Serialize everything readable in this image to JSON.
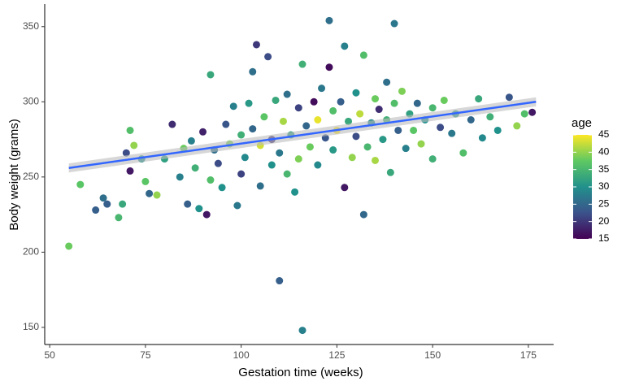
{
  "chart_data": {
    "type": "scatter",
    "x_label": "Gestation time (weeks)",
    "y_label": "Body weight (grams)",
    "xlim": [
      48.7,
      181.6
    ],
    "ylim": [
      138.6,
      365
    ],
    "xticks": [
      50,
      75,
      100,
      125,
      150,
      175
    ],
    "yticks": [
      150,
      200,
      250,
      300,
      350
    ],
    "grid": false,
    "x": [
      55,
      58,
      62,
      64,
      65,
      68,
      69,
      70,
      71,
      71,
      72,
      74,
      75,
      76,
      78,
      80,
      82,
      84,
      85,
      86,
      87,
      88,
      89,
      90,
      91,
      92,
      92,
      93,
      94,
      95,
      96,
      97,
      98,
      99,
      100,
      100,
      101,
      102,
      103,
      103,
      104,
      105,
      105,
      106,
      107,
      108,
      108,
      109,
      110,
      110,
      111,
      112,
      112,
      113,
      114,
      115,
      115,
      116,
      116,
      117,
      118,
      119,
      120,
      120,
      121,
      122,
      123,
      123,
      124,
      124,
      125,
      126,
      127,
      127,
      128,
      129,
      130,
      130,
      131,
      132,
      132,
      133,
      134,
      135,
      135,
      136,
      137,
      138,
      138,
      139,
      140,
      140,
      141,
      142,
      143,
      144,
      145,
      146,
      147,
      148,
      150,
      150,
      152,
      153,
      155,
      156,
      158,
      160,
      162,
      163,
      165,
      167,
      170,
      172,
      174,
      176
    ],
    "y": [
      204,
      245,
      228,
      236,
      232,
      223,
      232,
      266,
      281,
      254,
      271,
      262,
      247,
      239,
      238,
      262,
      285,
      250,
      269,
      232,
      274,
      256,
      229,
      280,
      225,
      248,
      318,
      268,
      259,
      243,
      285,
      272,
      297,
      231,
      278,
      252,
      263,
      299,
      282,
      320,
      338,
      271,
      244,
      290,
      330,
      258,
      275,
      301,
      181,
      266,
      287,
      252,
      305,
      278,
      240,
      296,
      262,
      148,
      325,
      284,
      270,
      300,
      258,
      288,
      309,
      276,
      354,
      323,
      268,
      294,
      281,
      300,
      337,
      243,
      287,
      263,
      306,
      277,
      292,
      331,
      225,
      270,
      286,
      302,
      261,
      295,
      275,
      313,
      288,
      253,
      352,
      299,
      281,
      307,
      269,
      292,
      281,
      299,
      272,
      288,
      296,
      262,
      283,
      301,
      279,
      292,
      266,
      288,
      302,
      276,
      290,
      281,
      303,
      284,
      292,
      293
    ],
    "age": [
      38,
      37,
      24,
      26,
      24,
      35,
      33,
      22,
      36,
      17,
      40,
      30,
      37,
      25,
      40,
      32,
      19,
      28,
      38,
      24,
      28,
      34,
      30,
      18,
      17,
      36,
      33,
      26,
      22,
      30,
      23,
      39,
      28,
      27,
      34,
      21,
      29,
      31,
      25,
      26,
      20,
      43,
      26,
      37,
      22,
      30,
      19,
      33,
      24,
      27,
      41,
      35,
      26,
      32,
      30,
      21,
      39,
      28,
      34,
      25,
      38,
      16,
      29,
      44,
      27,
      23,
      26,
      16,
      31,
      36,
      45,
      24,
      28,
      17,
      33,
      40,
      30,
      22,
      42,
      36,
      25,
      35,
      29,
      38,
      41,
      19,
      31,
      26,
      34,
      33,
      27,
      36,
      24,
      39,
      28,
      32,
      37,
      25,
      40,
      30,
      35,
      34,
      22,
      38,
      27,
      31,
      36,
      25,
      33,
      29,
      34,
      30,
      23,
      40,
      36,
      17
    ],
    "trend": {
      "x": [
        55,
        177
      ],
      "y": [
        256,
        300
      ],
      "lower": [
        253,
        297
      ],
      "upper": [
        259,
        303
      ],
      "color": "#3366ff",
      "band_color": "#bdbdbd"
    },
    "colorbar": {
      "title": "age",
      "lim": [
        15,
        45
      ],
      "ticks": [
        15,
        20,
        25,
        30,
        35,
        40,
        45
      ],
      "colors": [
        "#440154",
        "#3b528b",
        "#21918c",
        "#5ec962",
        "#fde725"
      ]
    }
  }
}
